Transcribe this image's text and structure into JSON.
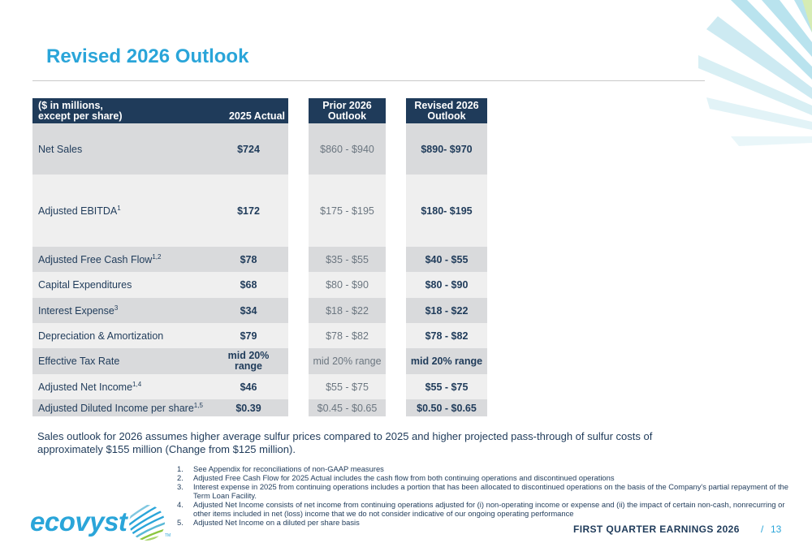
{
  "title": "Revised 2026 Outlook",
  "table": {
    "headers": {
      "label_line1": "($ in millions,",
      "label_line2": "except per share)",
      "actual": "2025 Actual",
      "prior_line1": "Prior 2026",
      "prior_line2": "Outlook",
      "revised_line1": "Revised 2026",
      "revised_line2": "Outlook"
    },
    "rows": [
      {
        "label": "Net Sales",
        "sup": "",
        "actual": "$724",
        "prior": "$860 - $940",
        "revised": "$890- $970"
      },
      {
        "label": "Adjusted EBITDA",
        "sup": "1",
        "actual": "$172",
        "prior": "$175 - $195",
        "revised": "$180- $195"
      },
      {
        "label": "Adjusted Free Cash Flow",
        "sup": "1,2",
        "actual": "$78",
        "prior": "$35 - $55",
        "revised": "$40 - $55"
      },
      {
        "label": "Capital Expenditures",
        "sup": "",
        "actual": "$68",
        "prior": "$80 - $90",
        "revised": "$80 - $90"
      },
      {
        "label": "Interest Expense",
        "sup": "3",
        "actual": "$34",
        "prior": "$18 - $22",
        "revised": "$18 - $22"
      },
      {
        "label": "Depreciation & Amortization",
        "sup": "",
        "actual": "$79",
        "prior": "$78 - $82",
        "revised": "$78 - $82"
      },
      {
        "label": "Effective Tax Rate",
        "sup": "",
        "actual_line1": "mid 20%",
        "actual_line2": "range",
        "prior": "mid 20% range",
        "revised": "mid 20% range"
      },
      {
        "label": "Adjusted Net Income",
        "sup": "1,4",
        "actual": "$46",
        "prior": "$55 - $75",
        "revised": "$55 - $75"
      },
      {
        "label": "Adjusted Diluted Income per share",
        "sup": "1,5",
        "actual": "$0.39",
        "prior": "$0.45 - $0.65",
        "revised": "$0.50 - $0.65"
      }
    ]
  },
  "note": "Sales outlook for 2026 assumes higher average sulfur prices compared to 2025 and higher projected pass-through of sulfur costs of approximately $155 million (Change from $125 million).",
  "footnotes": [
    {
      "num": "1.",
      "text": "See Appendix  for reconciliations of non-GAAP measures"
    },
    {
      "num": "2.",
      "text": "Adjusted Free Cash Flow for 2025 Actual includes the cash flow from both continuing operations and discontinued operations"
    },
    {
      "num": "3.",
      "text": "Interest expense in 2025 from continuing operations includes a portion that has been allocated to discontinued operations on the basis of the Company's partial repayment of the  Term Loan Facility."
    },
    {
      "num": "4.",
      "text": "Adjusted Net Income consists of net income from continuing operations adjusted for (i) non-operating income or expense and (ii) the impact of certain non-cash, nonrecurring or other items included in net (loss) income that we do not consider indicative of our ongoing operating performance"
    },
    {
      "num": "5.",
      "text": "Adjusted Net Income on a diluted per share basis"
    }
  ],
  "logo": {
    "text": "ecovyst",
    "tm": "TM",
    "mark_icon": "sphere-swirl-icon"
  },
  "footer": {
    "title": "FIRST QUARTER EARNINGS 2026",
    "separator": "/",
    "page": "13"
  },
  "colors": {
    "accent": "#2aa5d9",
    "navy": "#1f3b5a",
    "row_dark": "#d9dadc",
    "row_light": "#efefef",
    "mark_green": "#8cc63f"
  }
}
